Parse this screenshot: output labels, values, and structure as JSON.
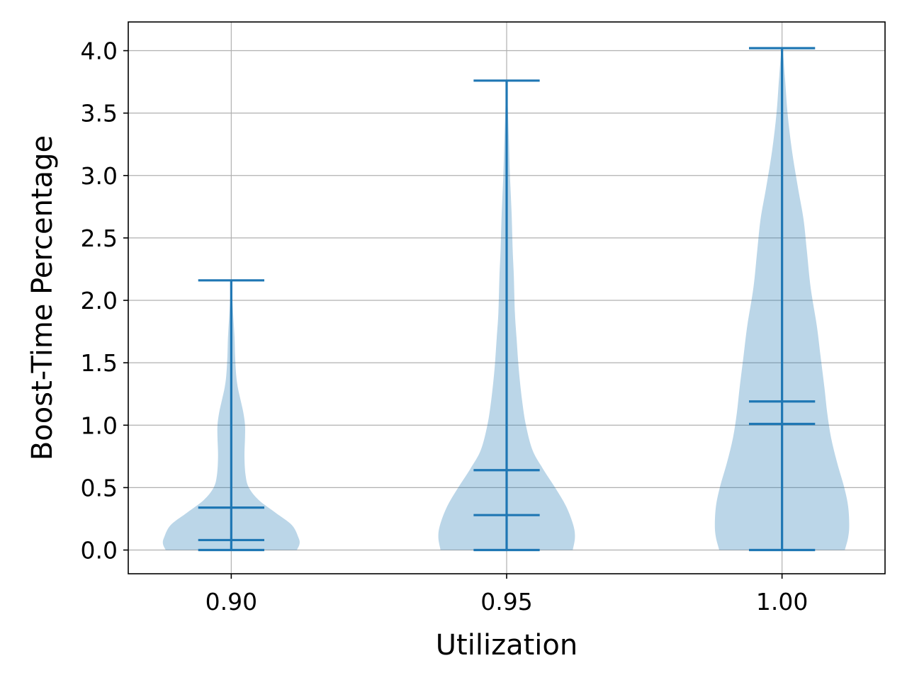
{
  "chart_data": {
    "type": "violin",
    "title": "",
    "xlabel": "Utilization",
    "ylabel": "Boost-Time Percentage",
    "xlim": [
      0.8813,
      1.0187
    ],
    "ylim": [
      -0.19,
      4.23
    ],
    "grid": true,
    "x_ticks": [
      {
        "value": 0.9,
        "label": "0.90"
      },
      {
        "value": 0.95,
        "label": "0.95"
      },
      {
        "value": 1.0,
        "label": "1.00"
      }
    ],
    "y_ticks": [
      {
        "value": 0.0,
        "label": "0.0"
      },
      {
        "value": 0.5,
        "label": "0.5"
      },
      {
        "value": 1.0,
        "label": "1.0"
      },
      {
        "value": 1.5,
        "label": "1.5"
      },
      {
        "value": 2.0,
        "label": "2.0"
      },
      {
        "value": 2.5,
        "label": "2.5"
      },
      {
        "value": 3.0,
        "label": "3.0"
      },
      {
        "value": 3.5,
        "label": "3.5"
      },
      {
        "value": 4.0,
        "label": "4.0"
      }
    ],
    "half_cap_width": 0.006,
    "colors": {
      "line": "#1f77b4",
      "body": "#1f77b4"
    },
    "violins": [
      {
        "position": 0.9,
        "min": 0.0,
        "max": 2.16,
        "mean": 0.34,
        "median": 0.08,
        "density": [
          [
            0.0,
            0.0119
          ],
          [
            0.05,
            0.0124
          ],
          [
            0.1,
            0.0122
          ],
          [
            0.2,
            0.011
          ],
          [
            0.3,
            0.008
          ],
          [
            0.4,
            0.005
          ],
          [
            0.5,
            0.0032
          ],
          [
            0.6,
            0.0026
          ],
          [
            0.75,
            0.0024
          ],
          [
            0.9,
            0.0025
          ],
          [
            1.0,
            0.0025
          ],
          [
            1.1,
            0.0022
          ],
          [
            1.2,
            0.0017
          ],
          [
            1.3,
            0.0012
          ],
          [
            1.4,
            0.0009
          ],
          [
            1.55,
            0.0007
          ],
          [
            1.7,
            0.0006
          ],
          [
            1.85,
            0.0004
          ],
          [
            2.0,
            0.0002
          ],
          [
            2.16,
            0.0
          ]
        ]
      },
      {
        "position": 0.95,
        "min": 0.0,
        "max": 3.76,
        "mean": 0.64,
        "median": 0.28,
        "density": [
          [
            0.0,
            0.012
          ],
          [
            0.1,
            0.0124
          ],
          [
            0.2,
            0.0121
          ],
          [
            0.35,
            0.0108
          ],
          [
            0.5,
            0.0088
          ],
          [
            0.65,
            0.0066
          ],
          [
            0.8,
            0.0047
          ],
          [
            1.0,
            0.0035
          ],
          [
            1.2,
            0.0028
          ],
          [
            1.45,
            0.0022
          ],
          [
            1.7,
            0.0018
          ],
          [
            1.9,
            0.0015
          ],
          [
            2.2,
            0.0013
          ],
          [
            2.4,
            0.0011
          ],
          [
            2.7,
            0.0009
          ],
          [
            3.0,
            0.0006
          ],
          [
            3.3,
            0.0004
          ],
          [
            3.55,
            0.0002
          ],
          [
            3.76,
            0.0
          ]
        ]
      },
      {
        "position": 1.0,
        "min": 0.0,
        "max": 4.02,
        "mean": 1.19,
        "median": 1.01,
        "density": [
          [
            0.0,
            0.0114
          ],
          [
            0.1,
            0.012
          ],
          [
            0.2,
            0.0122
          ],
          [
            0.35,
            0.012
          ],
          [
            0.5,
            0.0113
          ],
          [
            0.7,
            0.01
          ],
          [
            0.9,
            0.0089
          ],
          [
            1.1,
            0.0082
          ],
          [
            1.3,
            0.0077
          ],
          [
            1.55,
            0.007
          ],
          [
            1.8,
            0.0063
          ],
          [
            2.1,
            0.0052
          ],
          [
            2.4,
            0.0045
          ],
          [
            2.65,
            0.0039
          ],
          [
            2.9,
            0.0029
          ],
          [
            3.2,
            0.0018
          ],
          [
            3.5,
            0.001
          ],
          [
            3.8,
            0.0005
          ],
          [
            4.02,
            0.0
          ]
        ]
      }
    ]
  }
}
